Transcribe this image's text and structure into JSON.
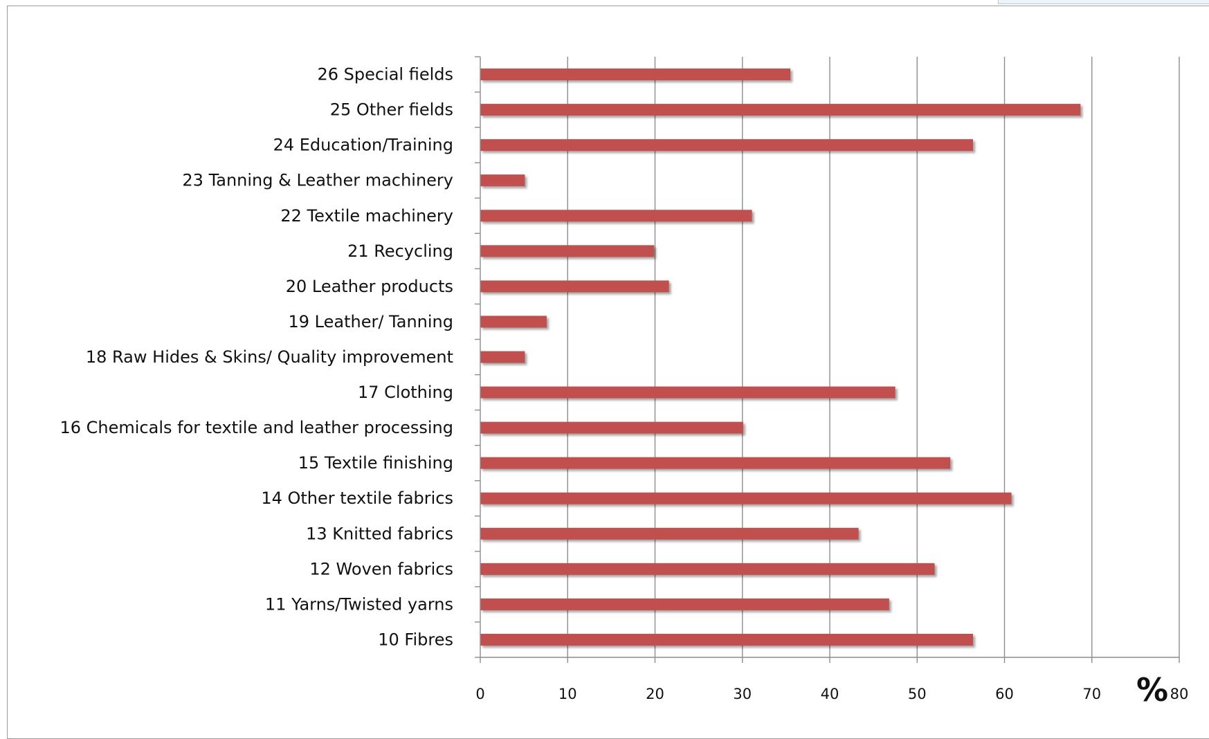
{
  "chart_data": {
    "type": "bar",
    "orientation": "horizontal",
    "categories": [
      "26 Special fields",
      "25 Other fields",
      "24 Education/Training",
      "23 Tanning & Leather machinery",
      "22 Textile machinery",
      "21 Recycling",
      "20 Leather products",
      "19 Leather/ Tanning",
      "18 Raw Hides & Skins/ Quality improvement",
      "17 Clothing",
      "16 Chemicals for textile and  leather processing",
      "15 Textile finishing",
      "14 Other textile fabrics",
      "13 Knitted fabrics",
      "12 Woven fabrics",
      "11 Yarns/Twisted  yarns",
      "10 Fibres"
    ],
    "values": [
      35.5,
      68.7,
      56.4,
      5.1,
      31.1,
      19.9,
      21.6,
      7.6,
      5.1,
      47.5,
      30.1,
      53.8,
      60.8,
      43.3,
      52.0,
      46.8,
      56.4
    ],
    "xlim": [
      0,
      80
    ],
    "xticks": [
      "0",
      "10",
      "20",
      "30",
      "40",
      "50",
      "60",
      "70",
      "80"
    ],
    "unit_label": "%",
    "grid": "vertical",
    "bar_color": "#c0504d"
  }
}
